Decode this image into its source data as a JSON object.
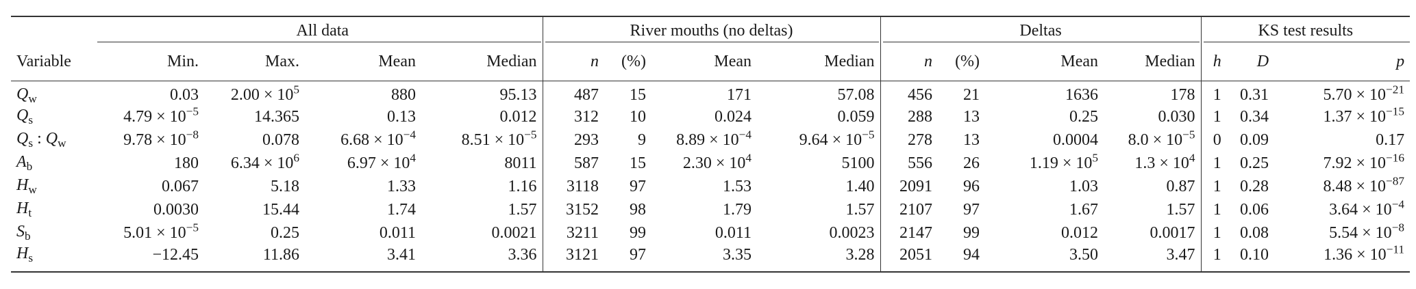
{
  "groups": [
    "All data",
    "River mouths (no deltas)",
    "Deltas",
    "KS test results"
  ],
  "columns": [
    "Variable",
    "Min.",
    "Max.",
    "Mean",
    "Median",
    "n",
    "(%)",
    "Mean",
    "Median",
    "n",
    "(%)",
    "Mean",
    "Median",
    "h",
    "D",
    "p"
  ],
  "rows": [
    [
      "Q_w",
      "0.03",
      "2.00 × 10^5",
      "880",
      "95.13",
      "487",
      "15",
      "171",
      "57.08",
      "456",
      "21",
      "1636",
      "178",
      "1",
      "0.31",
      "5.70 × 10^−21"
    ],
    [
      "Q_s",
      "4.79 × 10^−5",
      "14.365",
      "0.13",
      "0.012",
      "312",
      "10",
      "0.024",
      "0.059",
      "288",
      "13",
      "0.25",
      "0.030",
      "1",
      "0.34",
      "1.37 × 10^−15"
    ],
    [
      "Q_s : Q_w",
      "9.78 × 10^−8",
      "0.078",
      "6.68 × 10^−4",
      "8.51 × 10^−5",
      "293",
      "9",
      "8.89 × 10^−4",
      "9.64 × 10^−5",
      "278",
      "13",
      "0.0004",
      "8.0 × 10^−5",
      "0",
      "0.09",
      "0.17"
    ],
    [
      "A_b",
      "180",
      "6.34 × 10^6",
      "6.97 × 10^4",
      "8011",
      "587",
      "15",
      "2.30 × 10^4",
      "5100",
      "556",
      "26",
      "1.19 × 10^5",
      "1.3 × 10^4",
      "1",
      "0.25",
      "7.92 × 10^−16"
    ],
    [
      "H_w",
      "0.067",
      "5.18",
      "1.33",
      "1.16",
      "3118",
      "97",
      "1.53",
      "1.40",
      "2091",
      "96",
      "1.03",
      "0.87",
      "1",
      "0.28",
      "8.48 × 10^−87"
    ],
    [
      "H_t",
      "0.0030",
      "15.44",
      "1.74",
      "1.57",
      "3152",
      "98",
      "1.79",
      "1.57",
      "2107",
      "97",
      "1.67",
      "1.57",
      "1",
      "0.06",
      "3.64 × 10^−4"
    ],
    [
      "S_b",
      "5.01 × 10^−5",
      "0.25",
      "0.011",
      "0.0021",
      "3211",
      "99",
      "0.011",
      "0.0023",
      "2147",
      "99",
      "0.012",
      "0.0017",
      "1",
      "0.08",
      "5.54 × 10^−8"
    ],
    [
      "H_s",
      "−12.45",
      "11.86",
      "3.41",
      "3.36",
      "3121",
      "97",
      "3.35",
      "3.28",
      "2051",
      "94",
      "3.50",
      "3.47",
      "1",
      "0.10",
      "1.36 × 10^−11"
    ]
  ]
}
